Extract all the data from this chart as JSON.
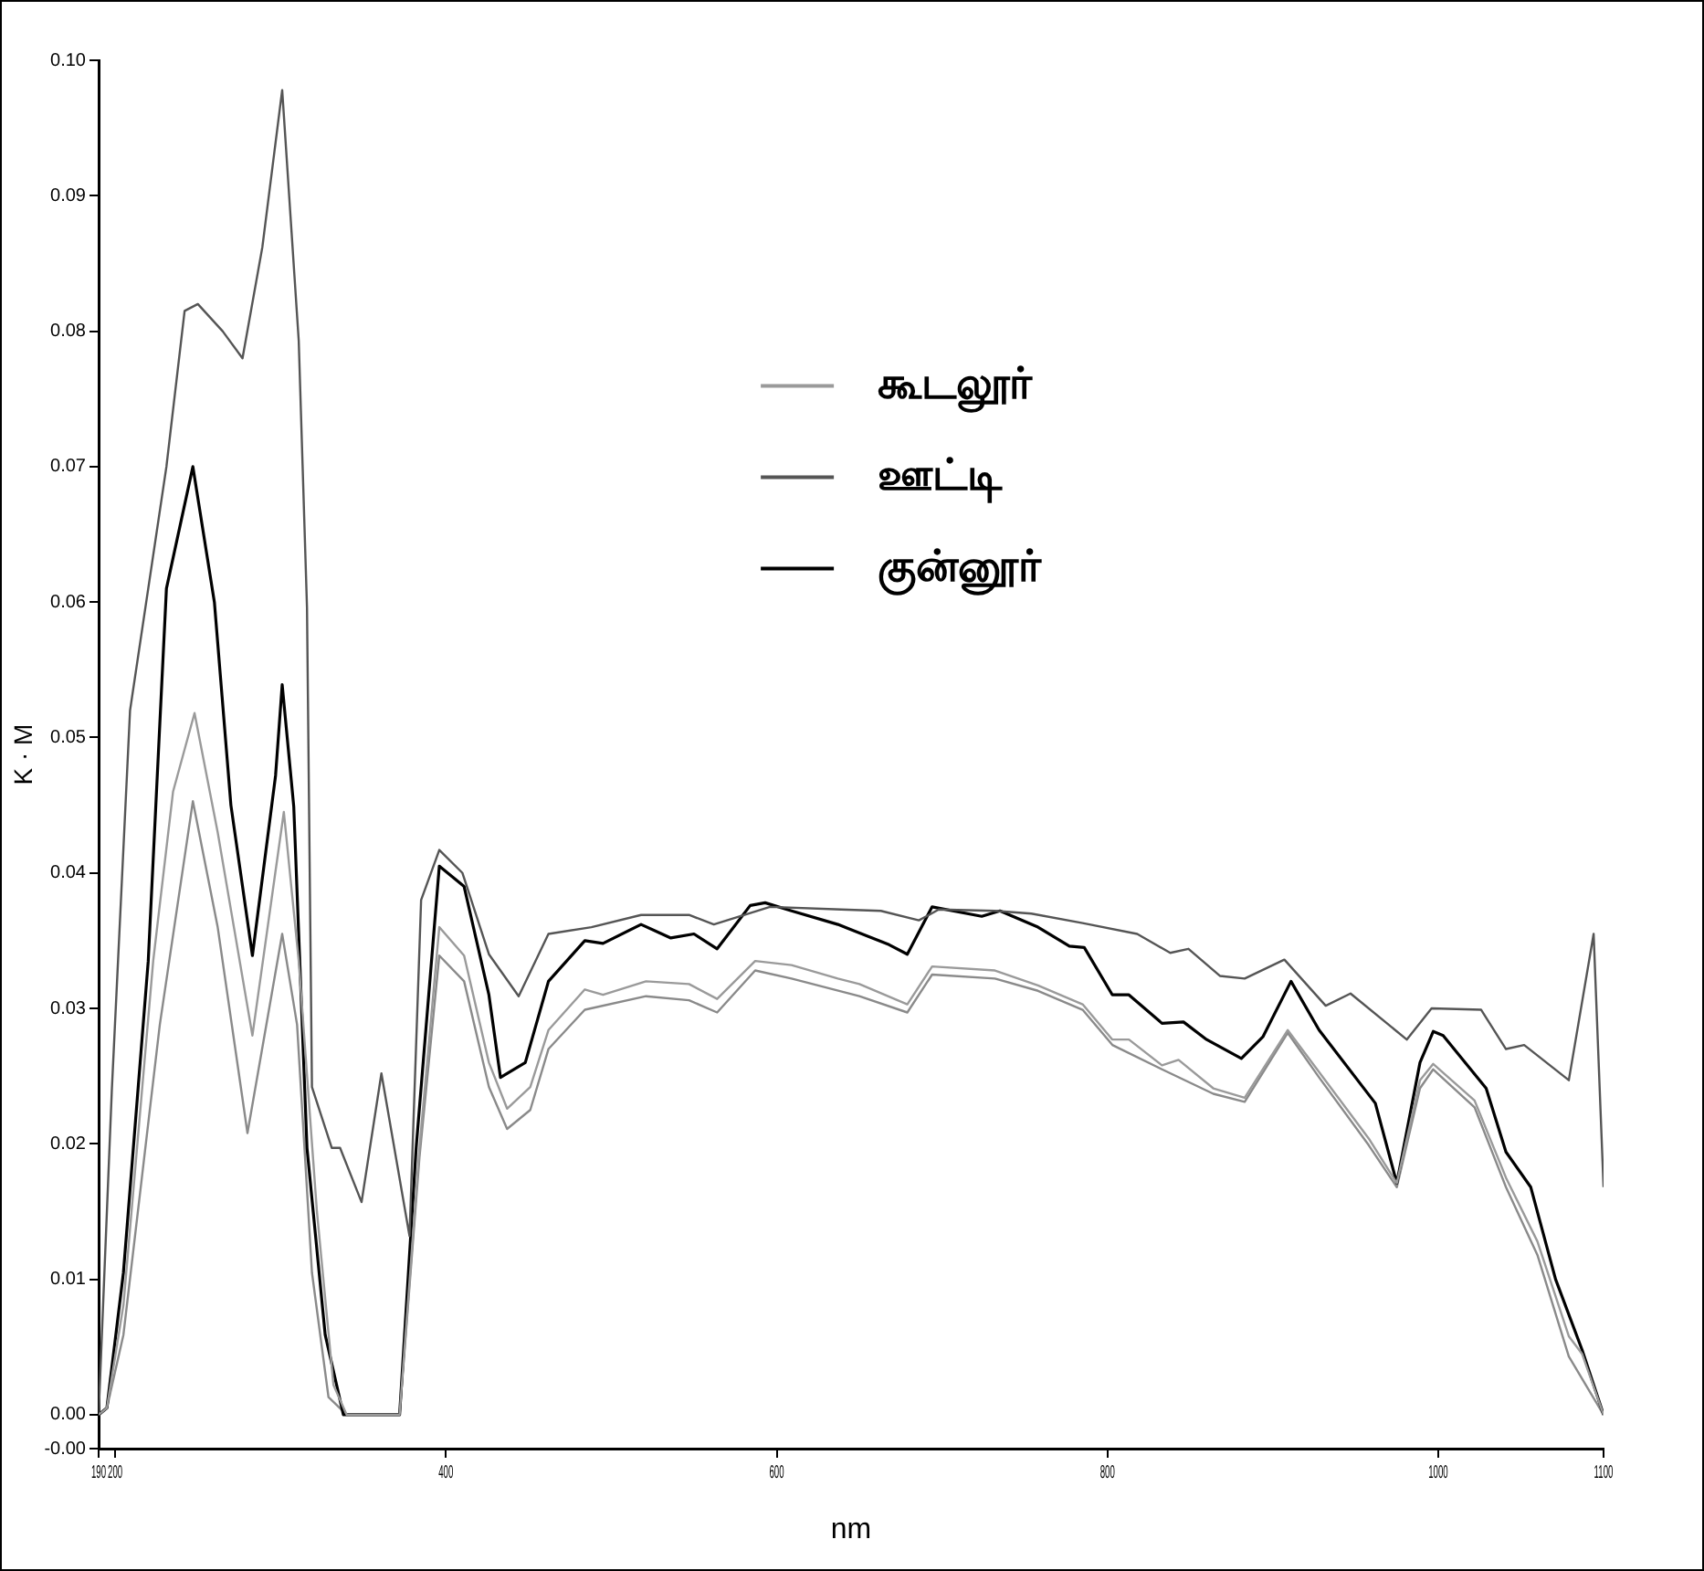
{
  "chart_data": {
    "type": "line",
    "xlabel": "nm",
    "ylabel": "K · M",
    "xlim": [
      190,
      1100
    ],
    "xticks": [
      190,
      200,
      400,
      600,
      800,
      1000,
      1100
    ],
    "ylim": [
      -0.0025,
      0.1
    ],
    "yticks": [
      {
        "value": -0.0025,
        "label": "-0.00"
      },
      {
        "value": 0,
        "label": "0.00"
      },
      0.01,
      0.02,
      0.03,
      0.04,
      0.05,
      0.06,
      0.07,
      0.08,
      0.09,
      {
        "value": 0.1,
        "label": "0.10"
      }
    ],
    "grid": false,
    "legend": "top",
    "marker": "none",
    "line_style": "solid",
    "series": [
      {
        "name": "கூடலூர்",
        "color": "#9a9a9a",
        "x": [
          190,
          195,
          205,
          223,
          235,
          248,
          262,
          283,
          302,
          311,
          322,
          332,
          340,
          372,
          384,
          396,
          411,
          426,
          437,
          451,
          462,
          484,
          495,
          521,
          547,
          564,
          587,
          609,
          637,
          650,
          679,
          694,
          732,
          758,
          785,
          803,
          813,
          833,
          843,
          864,
          883,
          909,
          928,
          958,
          975,
          989,
          997,
          1022,
          1041,
          1060,
          1079,
          1087,
          1100
        ],
        "values": [
          0.0,
          0.0005,
          0.0081,
          0.0335,
          0.046,
          0.0518,
          0.043,
          0.028,
          0.0445,
          0.0335,
          0.015,
          0.0022,
          0.0,
          0.0,
          0.0197,
          0.036,
          0.0339,
          0.026,
          0.0226,
          0.0242,
          0.0284,
          0.0314,
          0.031,
          0.032,
          0.0318,
          0.0307,
          0.0335,
          0.0332,
          0.0322,
          0.0318,
          0.0303,
          0.0331,
          0.0328,
          0.0317,
          0.0303,
          0.0277,
          0.0277,
          0.0258,
          0.0262,
          0.0241,
          0.0234,
          0.0284,
          0.0253,
          0.0204,
          0.0171,
          0.0247,
          0.0259,
          0.0232,
          0.0175,
          0.0128,
          0.0058,
          0.0045,
          0.0
        ]
      },
      {
        "name": "ஊட்டி",
        "color": "#555555",
        "x": [
          190,
          192,
          198,
          209,
          220,
          231,
          242,
          250,
          265,
          277,
          289,
          301,
          311,
          316,
          319,
          331,
          336,
          349,
          361,
          378,
          385,
          396,
          410,
          426,
          444,
          462,
          488,
          518,
          547,
          562,
          596,
          639,
          663,
          686,
          698,
          732,
          754,
          785,
          818,
          838,
          849,
          868,
          883,
          907,
          932,
          947,
          981,
          996,
          1026,
          1041,
          1052,
          1079,
          1094,
          1100
        ],
        "values": [
          0.0,
          0.006,
          0.024,
          0.052,
          0.061,
          0.07,
          0.0815,
          0.082,
          0.08,
          0.078,
          0.0862,
          0.0978,
          0.0793,
          0.0596,
          0.0242,
          0.0197,
          0.0197,
          0.0157,
          0.0252,
          0.0132,
          0.038,
          0.0417,
          0.04,
          0.034,
          0.0309,
          0.0355,
          0.036,
          0.0369,
          0.0369,
          0.0362,
          0.0375,
          0.0373,
          0.0372,
          0.0365,
          0.0373,
          0.0372,
          0.037,
          0.0363,
          0.0355,
          0.0341,
          0.0344,
          0.0324,
          0.0322,
          0.0336,
          0.0302,
          0.0311,
          0.0277,
          0.03,
          0.0299,
          0.027,
          0.0273,
          0.0247,
          0.0355,
          0.0168
        ]
      },
      {
        "name": "குன்னூர்",
        "color": "#000000",
        "x": [
          190,
          195,
          205,
          220,
          231,
          247,
          260,
          270,
          283,
          297,
          301,
          308,
          316,
          327,
          338,
          372,
          382,
          396,
          411,
          426,
          433,
          448,
          462,
          484,
          495,
          518,
          536,
          550,
          564,
          584,
          593,
          609,
          637,
          668,
          679,
          694,
          724,
          735,
          758,
          777,
          786,
          803,
          813,
          833,
          846,
          860,
          881,
          894,
          911,
          928,
          962,
          975,
          989,
          997,
          1003,
          1029,
          1041,
          1056,
          1071,
          1087,
          1100
        ],
        "values": [
          0.0,
          0.0005,
          0.0105,
          0.0335,
          0.061,
          0.07,
          0.06,
          0.045,
          0.0339,
          0.0472,
          0.0539,
          0.0449,
          0.0197,
          0.0059,
          0.0,
          0.0,
          0.0197,
          0.0405,
          0.039,
          0.031,
          0.0249,
          0.026,
          0.032,
          0.035,
          0.0348,
          0.0362,
          0.0352,
          0.0355,
          0.0344,
          0.0376,
          0.0378,
          0.0372,
          0.0362,
          0.0347,
          0.034,
          0.0375,
          0.0368,
          0.0372,
          0.036,
          0.0346,
          0.0345,
          0.031,
          0.031,
          0.0289,
          0.029,
          0.0277,
          0.0263,
          0.0279,
          0.032,
          0.0284,
          0.023,
          0.0171,
          0.026,
          0.0283,
          0.028,
          0.0241,
          0.0194,
          0.0168,
          0.01,
          0.0048,
          0.0
        ]
      },
      {
        "color": "#8a8a8a",
        "x": [
          190,
          195,
          205,
          227,
          247,
          262,
          280,
          301,
          310,
          319,
          329,
          340,
          372,
          384,
          396,
          411,
          426,
          437,
          451,
          462,
          484,
          521,
          547,
          564,
          587,
          609,
          650,
          679,
          694,
          732,
          758,
          785,
          803,
          833,
          864,
          883,
          909,
          928,
          958,
          975,
          989,
          997,
          1022,
          1041,
          1060,
          1079,
          1100
        ],
        "values": [
          0.0,
          0.0005,
          0.0059,
          0.0288,
          0.0453,
          0.036,
          0.0208,
          0.0355,
          0.0288,
          0.0105,
          0.0013,
          0.0,
          0.0,
          0.019,
          0.0339,
          0.032,
          0.0242,
          0.0211,
          0.0225,
          0.027,
          0.0299,
          0.0309,
          0.0306,
          0.0297,
          0.0328,
          0.0322,
          0.0309,
          0.0297,
          0.0325,
          0.0322,
          0.0313,
          0.0299,
          0.0273,
          0.0255,
          0.0237,
          0.0231,
          0.0282,
          0.0249,
          0.0199,
          0.0168,
          0.0241,
          0.0255,
          0.0227,
          0.0168,
          0.0118,
          0.0043,
          0.0
        ]
      }
    ]
  }
}
